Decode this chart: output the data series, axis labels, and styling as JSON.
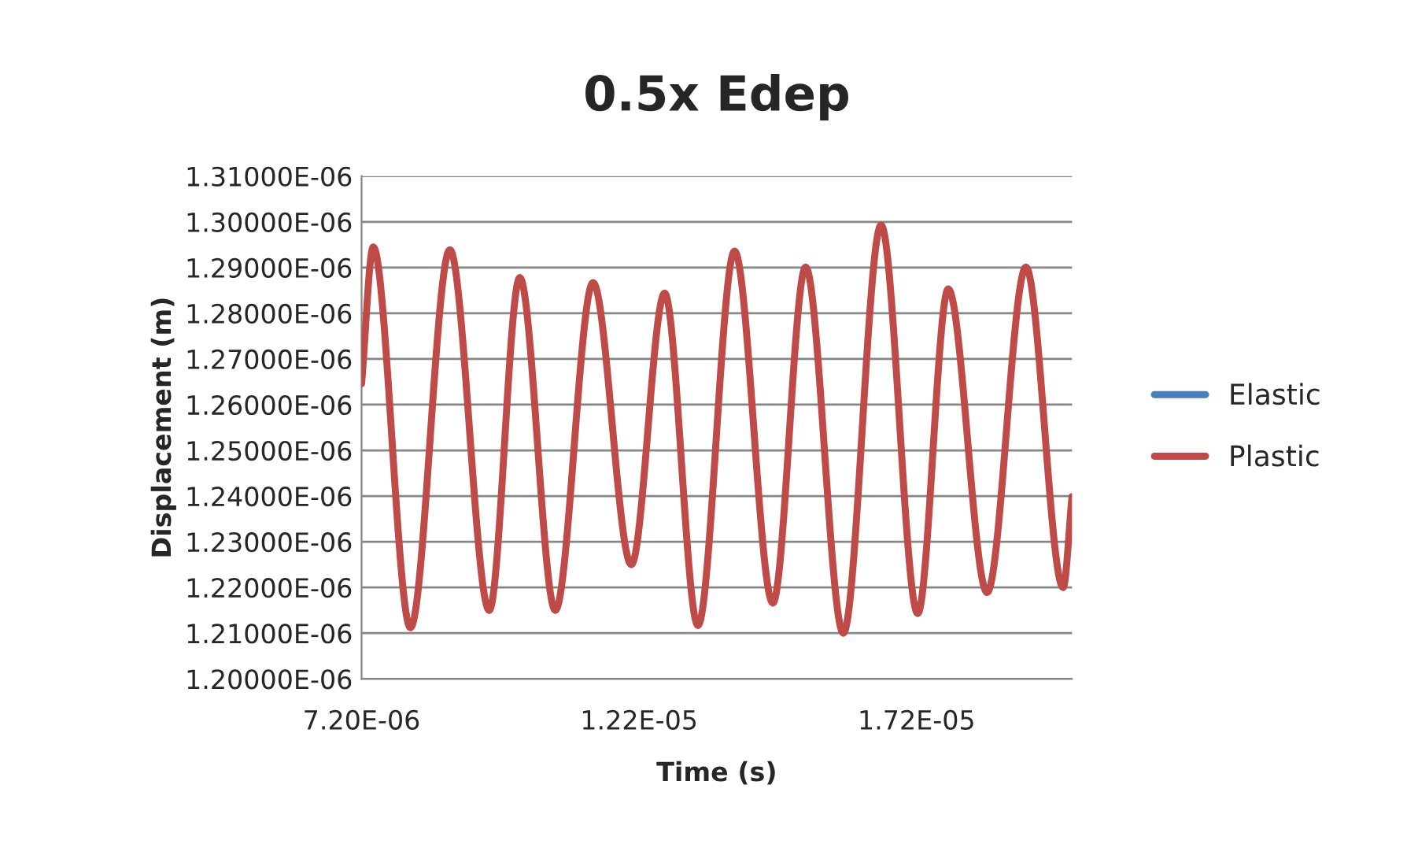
{
  "chart_data": {
    "type": "line",
    "title": "0.5x Edep",
    "xlabel": "Time (s)",
    "ylabel": "Displacement (m)",
    "x": [
      7.2e-06,
      7.41e-06,
      8.08e-06,
      8.79e-06,
      9.5e-06,
      1.005e-05,
      1.069e-05,
      1.137e-05,
      1.206e-05,
      1.266e-05,
      1.326e-05,
      1.392e-05,
      1.461e-05,
      1.52e-05,
      1.588e-05,
      1.656e-05,
      1.722e-05,
      1.777e-05,
      1.847e-05,
      1.917e-05,
      1.984e-05,
      2e-05
    ],
    "series": [
      {
        "name": "Elastic",
        "color": "#4a7ebb",
        "values": [
          null,
          null,
          null,
          null,
          null,
          null,
          null,
          null,
          null,
          null,
          null,
          null,
          null,
          null,
          null,
          null,
          null,
          null,
          null,
          null,
          null,
          null
        ]
      },
      {
        "name": "Plastic",
        "color": "#be4b48",
        "values": [
          1.2646e-06,
          1.2945e-06,
          1.2112e-06,
          1.2939e-06,
          1.215e-06,
          1.2878e-06,
          1.215e-06,
          1.2867e-06,
          1.225e-06,
          1.2844e-06,
          1.2117e-06,
          1.2936e-06,
          1.2166e-06,
          1.2901e-06,
          1.21e-06,
          1.2993e-06,
          1.2143e-06,
          1.2853e-06,
          1.2189e-06,
          1.2901e-06,
          1.22e-06,
          1.2399e-06
        ]
      }
    ],
    "xlim": [
      7.2e-06,
      2e-05
    ],
    "xticks": [
      {
        "value": 7.2e-06,
        "label": "7.20E-06"
      },
      {
        "value": 1.22e-05,
        "label": "1.22E-05"
      },
      {
        "value": 1.72e-05,
        "label": "1.72E-05"
      }
    ],
    "ylim": [
      1.2e-06,
      1.31e-06
    ],
    "yticks": [
      {
        "value": 1.2e-06,
        "label": "1.20000E-06"
      },
      {
        "value": 1.21e-06,
        "label": "1.21000E-06"
      },
      {
        "value": 1.22e-06,
        "label": "1.22000E-06"
      },
      {
        "value": 1.23e-06,
        "label": "1.23000E-06"
      },
      {
        "value": 1.24e-06,
        "label": "1.24000E-06"
      },
      {
        "value": 1.25e-06,
        "label": "1.25000E-06"
      },
      {
        "value": 1.26e-06,
        "label": "1.26000E-06"
      },
      {
        "value": 1.27e-06,
        "label": "1.27000E-06"
      },
      {
        "value": 1.28e-06,
        "label": "1.28000E-06"
      },
      {
        "value": 1.29e-06,
        "label": "1.29000E-06"
      },
      {
        "value": 1.3e-06,
        "label": "1.30000E-06"
      },
      {
        "value": 1.31e-06,
        "label": "1.31000E-06"
      }
    ],
    "grid": "y",
    "legend": "right",
    "marker": "none",
    "line_style": "solid"
  }
}
